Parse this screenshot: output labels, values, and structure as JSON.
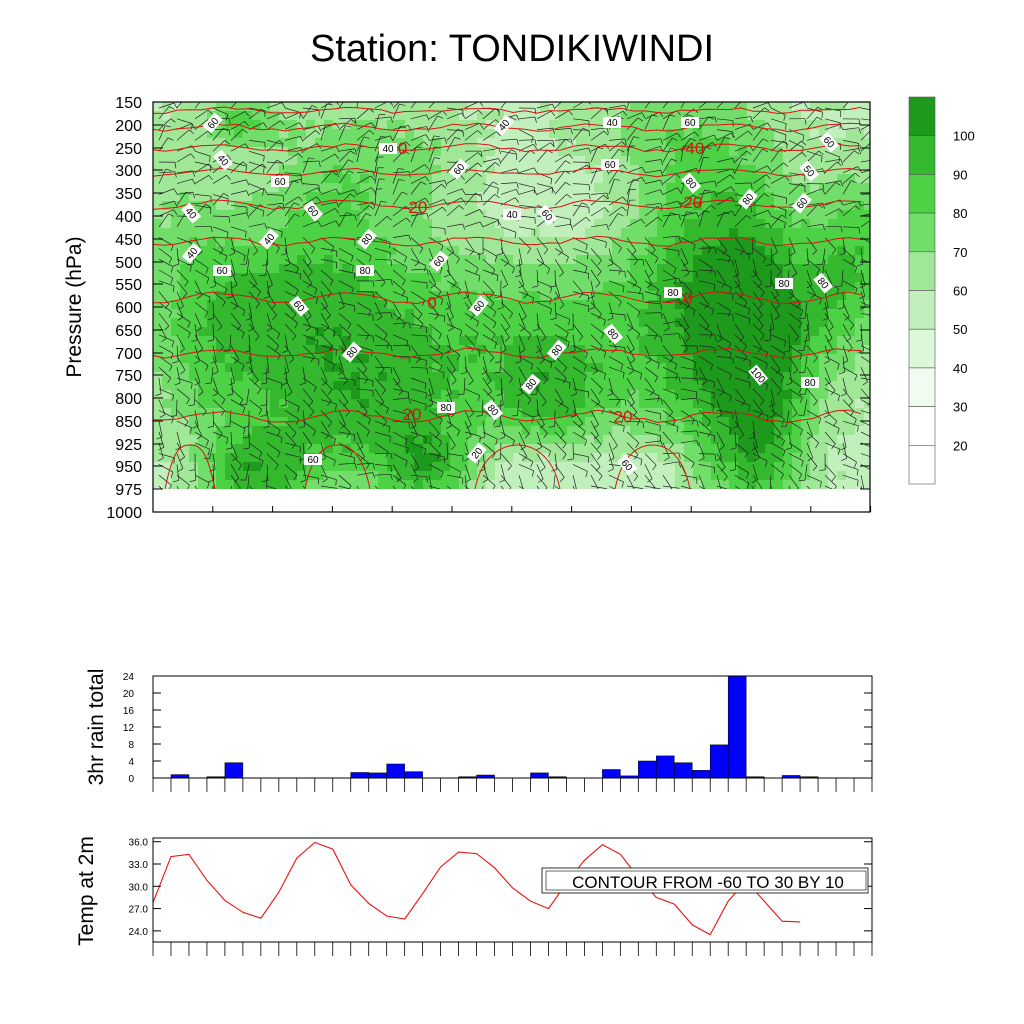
{
  "title": "Station: TONDIKIWINDI",
  "colors": {
    "green_fills": [
      "#ffffff",
      "#f0fcf0",
      "#dcf7da",
      "#c1f0bd",
      "#a0e898",
      "#72de6a",
      "#4cd244",
      "#33b82e",
      "#1d9a1c"
    ],
    "isotherm": "#dd1111",
    "rain_bar": "#0000ff",
    "temp_line": "#ee1111"
  },
  "chart_data": [
    {
      "type": "heatmap",
      "name": "relative-humidity-cross-section",
      "ylabel": "Pressure (hPa)",
      "y_ticks": [
        "150",
        "200",
        "250",
        "300",
        "350",
        "400",
        "450",
        "500",
        "550",
        "600",
        "650",
        "700",
        "750",
        "800",
        "850",
        "925",
        "950",
        "975",
        "1000"
      ],
      "colorbar": {
        "levels": [
          "20",
          "30",
          "40",
          "50",
          "60",
          "70",
          "80",
          "90",
          "100"
        ]
      },
      "humidity_contour_labels": [
        "40",
        "40",
        "40",
        "40",
        "40",
        "40",
        "40",
        "40",
        "50",
        "60",
        "60",
        "60",
        "60",
        "60",
        "60",
        "60",
        "60",
        "60",
        "60",
        "60",
        "60",
        "60",
        "60",
        "60",
        "80",
        "80",
        "80",
        "80",
        "80",
        "80",
        "80",
        "80",
        "80",
        "80",
        "80",
        "80",
        "80",
        "80",
        "100",
        "20"
      ],
      "isotherm_labels": [
        {
          "value": "-40",
          "level": 250
        },
        {
          "value": "-40",
          "level": 250
        },
        {
          "value": "-20",
          "level": 380
        },
        {
          "value": "-20",
          "level": 370
        },
        {
          "value": "0",
          "level": 590
        },
        {
          "value": "0",
          "level": 580
        },
        {
          "value": "20",
          "level": 835
        },
        {
          "value": "20",
          "level": 840
        }
      ],
      "overlay": "wind barbs"
    },
    {
      "type": "bar",
      "name": "rain",
      "ylabel": "3hr rain total",
      "ylim": [
        0,
        24
      ],
      "y_ticks": [
        "0",
        "4",
        "8",
        "12",
        "16",
        "20",
        "24"
      ],
      "values": [
        0,
        0.8,
        0,
        0.3,
        3.6,
        0,
        0,
        0,
        0,
        0,
        0,
        1.3,
        1.2,
        3.3,
        1.5,
        0,
        0,
        0.3,
        0.7,
        0,
        0,
        1.2,
        0.3,
        0,
        0,
        2.0,
        0.5,
        4.0,
        5.2,
        3.6,
        1.8,
        7.8,
        25.0,
        0.3,
        0,
        0.6,
        0.3,
        0,
        0,
        0
      ]
    },
    {
      "type": "line",
      "name": "temperature",
      "ylabel": "Temp at 2m",
      "ylim": [
        22.5,
        36.5
      ],
      "y_ticks": [
        "24.0",
        "27.0",
        "30.0",
        "33.0",
        "36.0"
      ],
      "values": [
        27.8,
        34.0,
        34.3,
        30.8,
        28.1,
        26.5,
        25.7,
        29.2,
        33.8,
        35.9,
        35.0,
        30.2,
        27.7,
        26.0,
        25.6,
        29.0,
        32.6,
        34.6,
        34.4,
        32.5,
        29.8,
        28.0,
        27.0,
        30.4,
        33.5,
        35.6,
        34.3,
        31.2,
        28.5,
        27.6,
        24.8,
        23.5,
        28.0,
        30.7,
        28.0,
        25.3,
        25.2
      ]
    }
  ],
  "annotation": "CONTOUR FROM -60 TO 30 BY 10"
}
